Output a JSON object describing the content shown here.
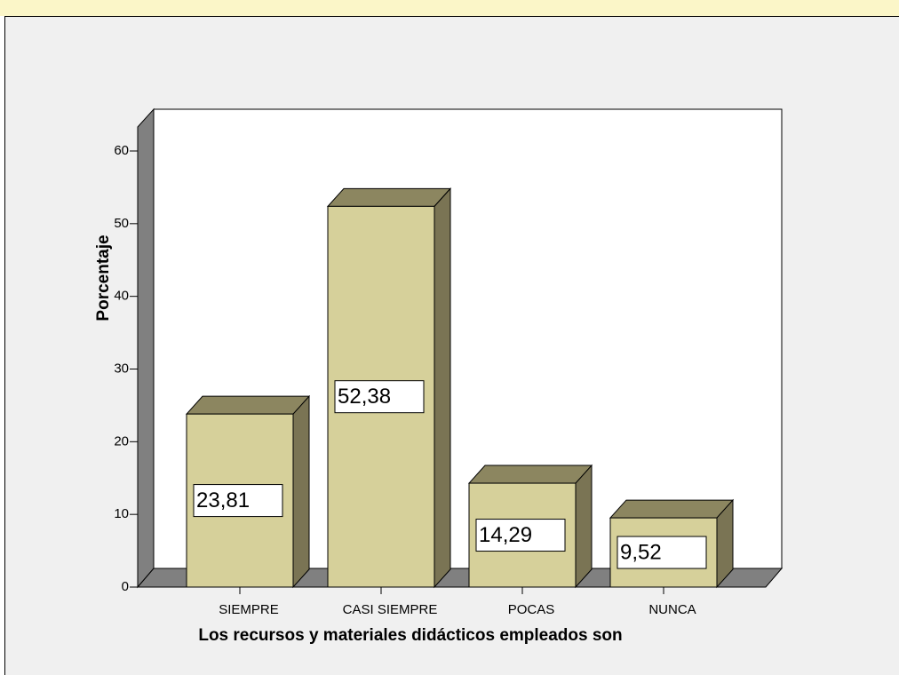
{
  "chart_data": {
    "type": "bar3d",
    "categories": [
      "SIEMPRE",
      "CASI SIEMPRE",
      "POCAS",
      "NUNCA"
    ],
    "values": [
      23.81,
      52.38,
      14.29,
      9.52
    ],
    "value_labels": [
      "23,81",
      "52,38",
      "14,29",
      "9,52"
    ],
    "color": "#d6d09a",
    "xlabel": "Los recursos y materiales didácticos empleados son",
    "ylabel": "Porcentaje",
    "ylim": [
      0,
      60
    ],
    "yticks": [
      0,
      10,
      20,
      30,
      40,
      50,
      60
    ]
  }
}
